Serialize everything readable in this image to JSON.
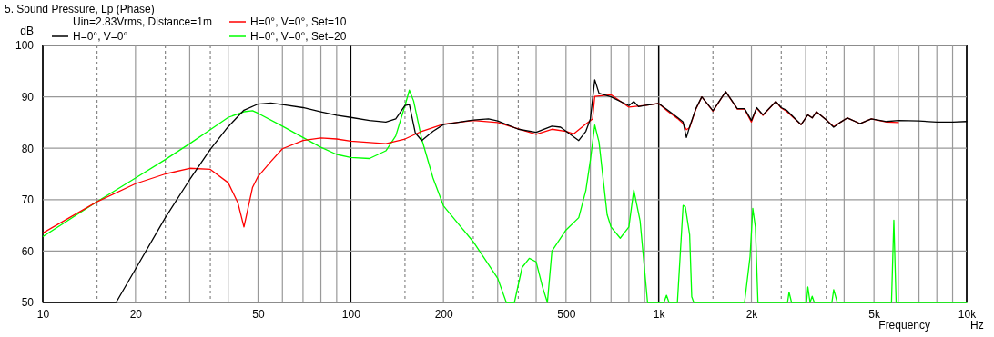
{
  "chart_data": {
    "type": "line",
    "title": "5. Sound Pressure, Lp (Phase)",
    "xlabel": "Frequency",
    "ylabel": "dB",
    "annotations": [
      "Uin=2.83Vrms, Distance=1m",
      "Hz"
    ],
    "log": "x",
    "grid": true,
    "legend": "top left",
    "line_style": "solid",
    "marker": "none",
    "xlim": [
      10,
      10000
    ],
    "ylim": [
      50,
      100
    ],
    "xticks": [
      10,
      {
        "value": 15,
        "label": null
      },
      20,
      {
        "value": 25,
        "label": null
      },
      {
        "value": 30,
        "label": null
      },
      {
        "value": 35,
        "label": null
      },
      {
        "value": 40,
        "label": null
      },
      50,
      {
        "value": 60,
        "label": null
      },
      {
        "value": 70,
        "label": null
      },
      {
        "value": 80,
        "label": null
      },
      {
        "value": 90,
        "label": null
      },
      100,
      {
        "value": 150,
        "label": null
      },
      200,
      {
        "value": 250,
        "label": null
      },
      {
        "value": 300,
        "label": null
      },
      {
        "value": 350,
        "label": null
      },
      {
        "value": 400,
        "label": null
      },
      500,
      {
        "value": 600,
        "label": null
      },
      {
        "value": 700,
        "label": null
      },
      {
        "value": 800,
        "label": null
      },
      {
        "value": 900,
        "label": null
      },
      {
        "value": 1000,
        "label": "1k"
      },
      {
        "value": 1500,
        "label": null
      },
      {
        "value": 2000,
        "label": "2k"
      },
      {
        "value": 2500,
        "label": null
      },
      {
        "value": 3000,
        "label": null
      },
      {
        "value": 3500,
        "label": null
      },
      {
        "value": 4000,
        "label": null
      },
      {
        "value": 5000,
        "label": "5k"
      },
      {
        "value": 6000,
        "label": null
      },
      {
        "value": 7000,
        "label": null
      },
      {
        "value": 8000,
        "label": null
      },
      {
        "value": 9000,
        "label": null
      },
      {
        "value": 10000,
        "label": "10k"
      }
    ],
    "yticks": [
      50,
      60,
      70,
      80,
      90,
      100
    ],
    "series": [
      {
        "name": "H=0°, V=0°",
        "color": "#000000",
        "x": [
          10,
          17.3,
          20,
          25,
          30,
          35,
          40,
          45,
          50,
          55,
          60,
          70,
          80,
          90,
          100,
          115,
          130,
          140,
          150,
          155,
          162,
          170,
          185,
          200,
          250,
          280,
          300,
          350,
          400,
          450,
          480,
          550,
          580,
          600,
          620,
          640,
          700,
          800,
          830,
          860,
          900,
          1000,
          1070,
          1150,
          1200,
          1230,
          1260,
          1320,
          1380,
          1500,
          1650,
          1800,
          1900,
          2000,
          2080,
          2180,
          2400,
          2500,
          2600,
          2900,
          3050,
          3150,
          3250,
          3500,
          3700,
          3900,
          4100,
          4500,
          4900,
          5500,
          6000,
          7000,
          8000,
          9000,
          10000
        ],
        "values": [
          50,
          50,
          56.5,
          66.5,
          73.9,
          79.8,
          84.2,
          87.4,
          88.6,
          88.8,
          88.5,
          87.9,
          87.1,
          86.4,
          86.0,
          85.4,
          85.1,
          85.7,
          88.3,
          88.5,
          83.0,
          81.5,
          83.3,
          84.6,
          85.5,
          85.7,
          85.3,
          83.7,
          83.1,
          84.3,
          84.1,
          81.5,
          83.3,
          85.7,
          93.3,
          90.7,
          90.0,
          88.3,
          89.1,
          88.1,
          88.3,
          88.7,
          87.4,
          86.0,
          85.1,
          82.1,
          84.2,
          87.7,
          90.0,
          87.3,
          91.0,
          87.7,
          87.7,
          85.4,
          87.9,
          86.5,
          89.1,
          87.9,
          87.4,
          84.6,
          86.5,
          85.9,
          87.1,
          85.5,
          84.1,
          85.1,
          85.9,
          84.8,
          85.7,
          85.2,
          85.4,
          85.3,
          85.1,
          85.1,
          85.2
        ]
      },
      {
        "name": "H=0°, V=0°, Set=10",
        "color": "#ff0000",
        "x": [
          10,
          15,
          20,
          25,
          30,
          35,
          40,
          43,
          45,
          48,
          50,
          55,
          60,
          70,
          80,
          90,
          100,
          130,
          150,
          170,
          200,
          250,
          300,
          400,
          450,
          500,
          530,
          580,
          610,
          620,
          700,
          800,
          900,
          1000,
          1070,
          1150,
          1200,
          1230,
          1260,
          1320,
          1380,
          1500,
          1650,
          1800,
          1900,
          2000,
          2080,
          2180,
          2400,
          2500,
          2600,
          2900,
          3050,
          3150,
          3250,
          3500,
          3700,
          3900,
          4100,
          4500,
          4900,
          5500,
          6000
        ],
        "values": [
          63.5,
          69.6,
          73.1,
          75.0,
          76.1,
          75.9,
          73.3,
          69.4,
          64.7,
          72.4,
          74.5,
          77.4,
          79.9,
          81.5,
          82.0,
          81.8,
          81.4,
          80.9,
          81.8,
          83.3,
          84.7,
          85.4,
          85.0,
          82.7,
          83.7,
          83.3,
          82.8,
          84.7,
          85.7,
          90.1,
          90.4,
          88.0,
          88.3,
          88.7,
          87.2,
          85.8,
          84.8,
          83.6,
          84.0,
          87.6,
          90.0,
          87.2,
          91.0,
          87.6,
          87.6,
          85.1,
          87.8,
          86.4,
          89.1,
          87.8,
          87.2,
          84.6,
          86.5,
          85.9,
          87.1,
          85.5,
          84.2,
          85.1,
          85.9,
          84.8,
          85.7,
          85.1,
          85.0
        ]
      },
      {
        "name": "H=0°, V=0°, Set=20",
        "color": "#00ff00",
        "x": [
          10,
          15,
          20,
          25,
          30,
          35,
          40,
          45,
          48,
          50,
          60,
          70,
          80,
          90,
          100,
          115,
          130,
          140,
          150,
          155,
          160,
          170,
          185,
          200,
          250,
          300,
          320,
          340,
          360,
          380,
          400,
          420,
          435,
          450,
          500,
          550,
          580,
          600,
          620,
          640,
          680,
          700,
          750,
          800,
          830,
          870,
          920,
          1040,
          1060,
          1080,
          1150,
          1200,
          1220,
          1260,
          1280,
          1300,
          1900,
          1980,
          2020,
          2060,
          2100,
          2620,
          2650,
          2700,
          3020,
          3050,
          3100,
          3150,
          3200,
          3650,
          3700,
          3800,
          5700,
          5800,
          5900,
          10000
        ],
        "values": [
          62.8,
          69.6,
          74.2,
          77.8,
          80.9,
          83.6,
          86.0,
          87.1,
          87.3,
          86.8,
          84.3,
          82.1,
          80.2,
          78.8,
          78.2,
          78.0,
          79.5,
          82.4,
          88.3,
          91.3,
          89.2,
          81.8,
          74.2,
          68.8,
          61.8,
          54.7,
          50,
          50,
          56.8,
          58.6,
          57.9,
          52.9,
          50,
          60.0,
          64.1,
          66.5,
          71.8,
          77.7,
          84.5,
          81.2,
          67.1,
          64.7,
          62.5,
          64.7,
          71.9,
          65.9,
          50,
          50,
          51.4,
          50,
          50,
          68.9,
          68.6,
          63.2,
          51.1,
          50,
          50,
          59.0,
          68.3,
          64.7,
          50,
          50,
          52.0,
          50,
          50,
          53.0,
          50,
          51.2,
          50,
          50,
          52.5,
          50,
          50,
          66.0,
          50,
          50
        ]
      }
    ]
  }
}
